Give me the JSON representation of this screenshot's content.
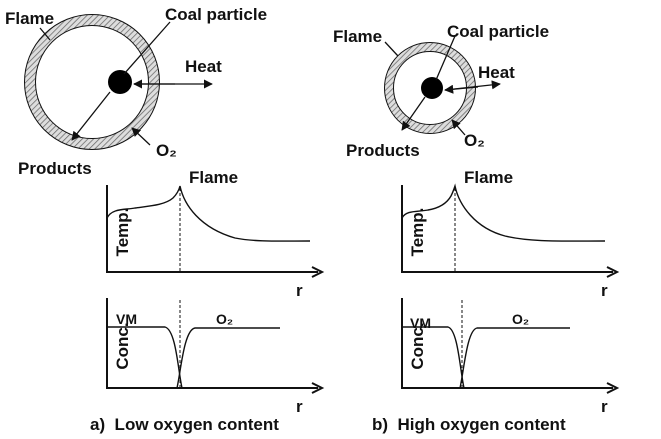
{
  "panels": [
    {
      "caption": "a)  Low oxygen content",
      "flame": "Flame",
      "particle": "Coal particle",
      "heat": "Heat",
      "products": "Products",
      "oxygen": "O₂",
      "temp_graph": {
        "label": "Flame",
        "y_label": "Temp.",
        "x_label": "r"
      },
      "conc_graph": {
        "y_label": "Conc.",
        "x_label": "r",
        "left": "VM",
        "right": "O₂"
      }
    },
    {
      "caption": "b)  High oxygen content",
      "flame": "Flame",
      "particle": "Coal particle",
      "heat": "Heat",
      "products": "Products",
      "oxygen": "O₂",
      "temp_graph": {
        "label": "Flame",
        "y_label": "Temp.",
        "x_label": "r"
      },
      "conc_graph": {
        "y_label": "Conc.",
        "x_label": "r",
        "left": "VM",
        "right": "O₂"
      }
    }
  ]
}
